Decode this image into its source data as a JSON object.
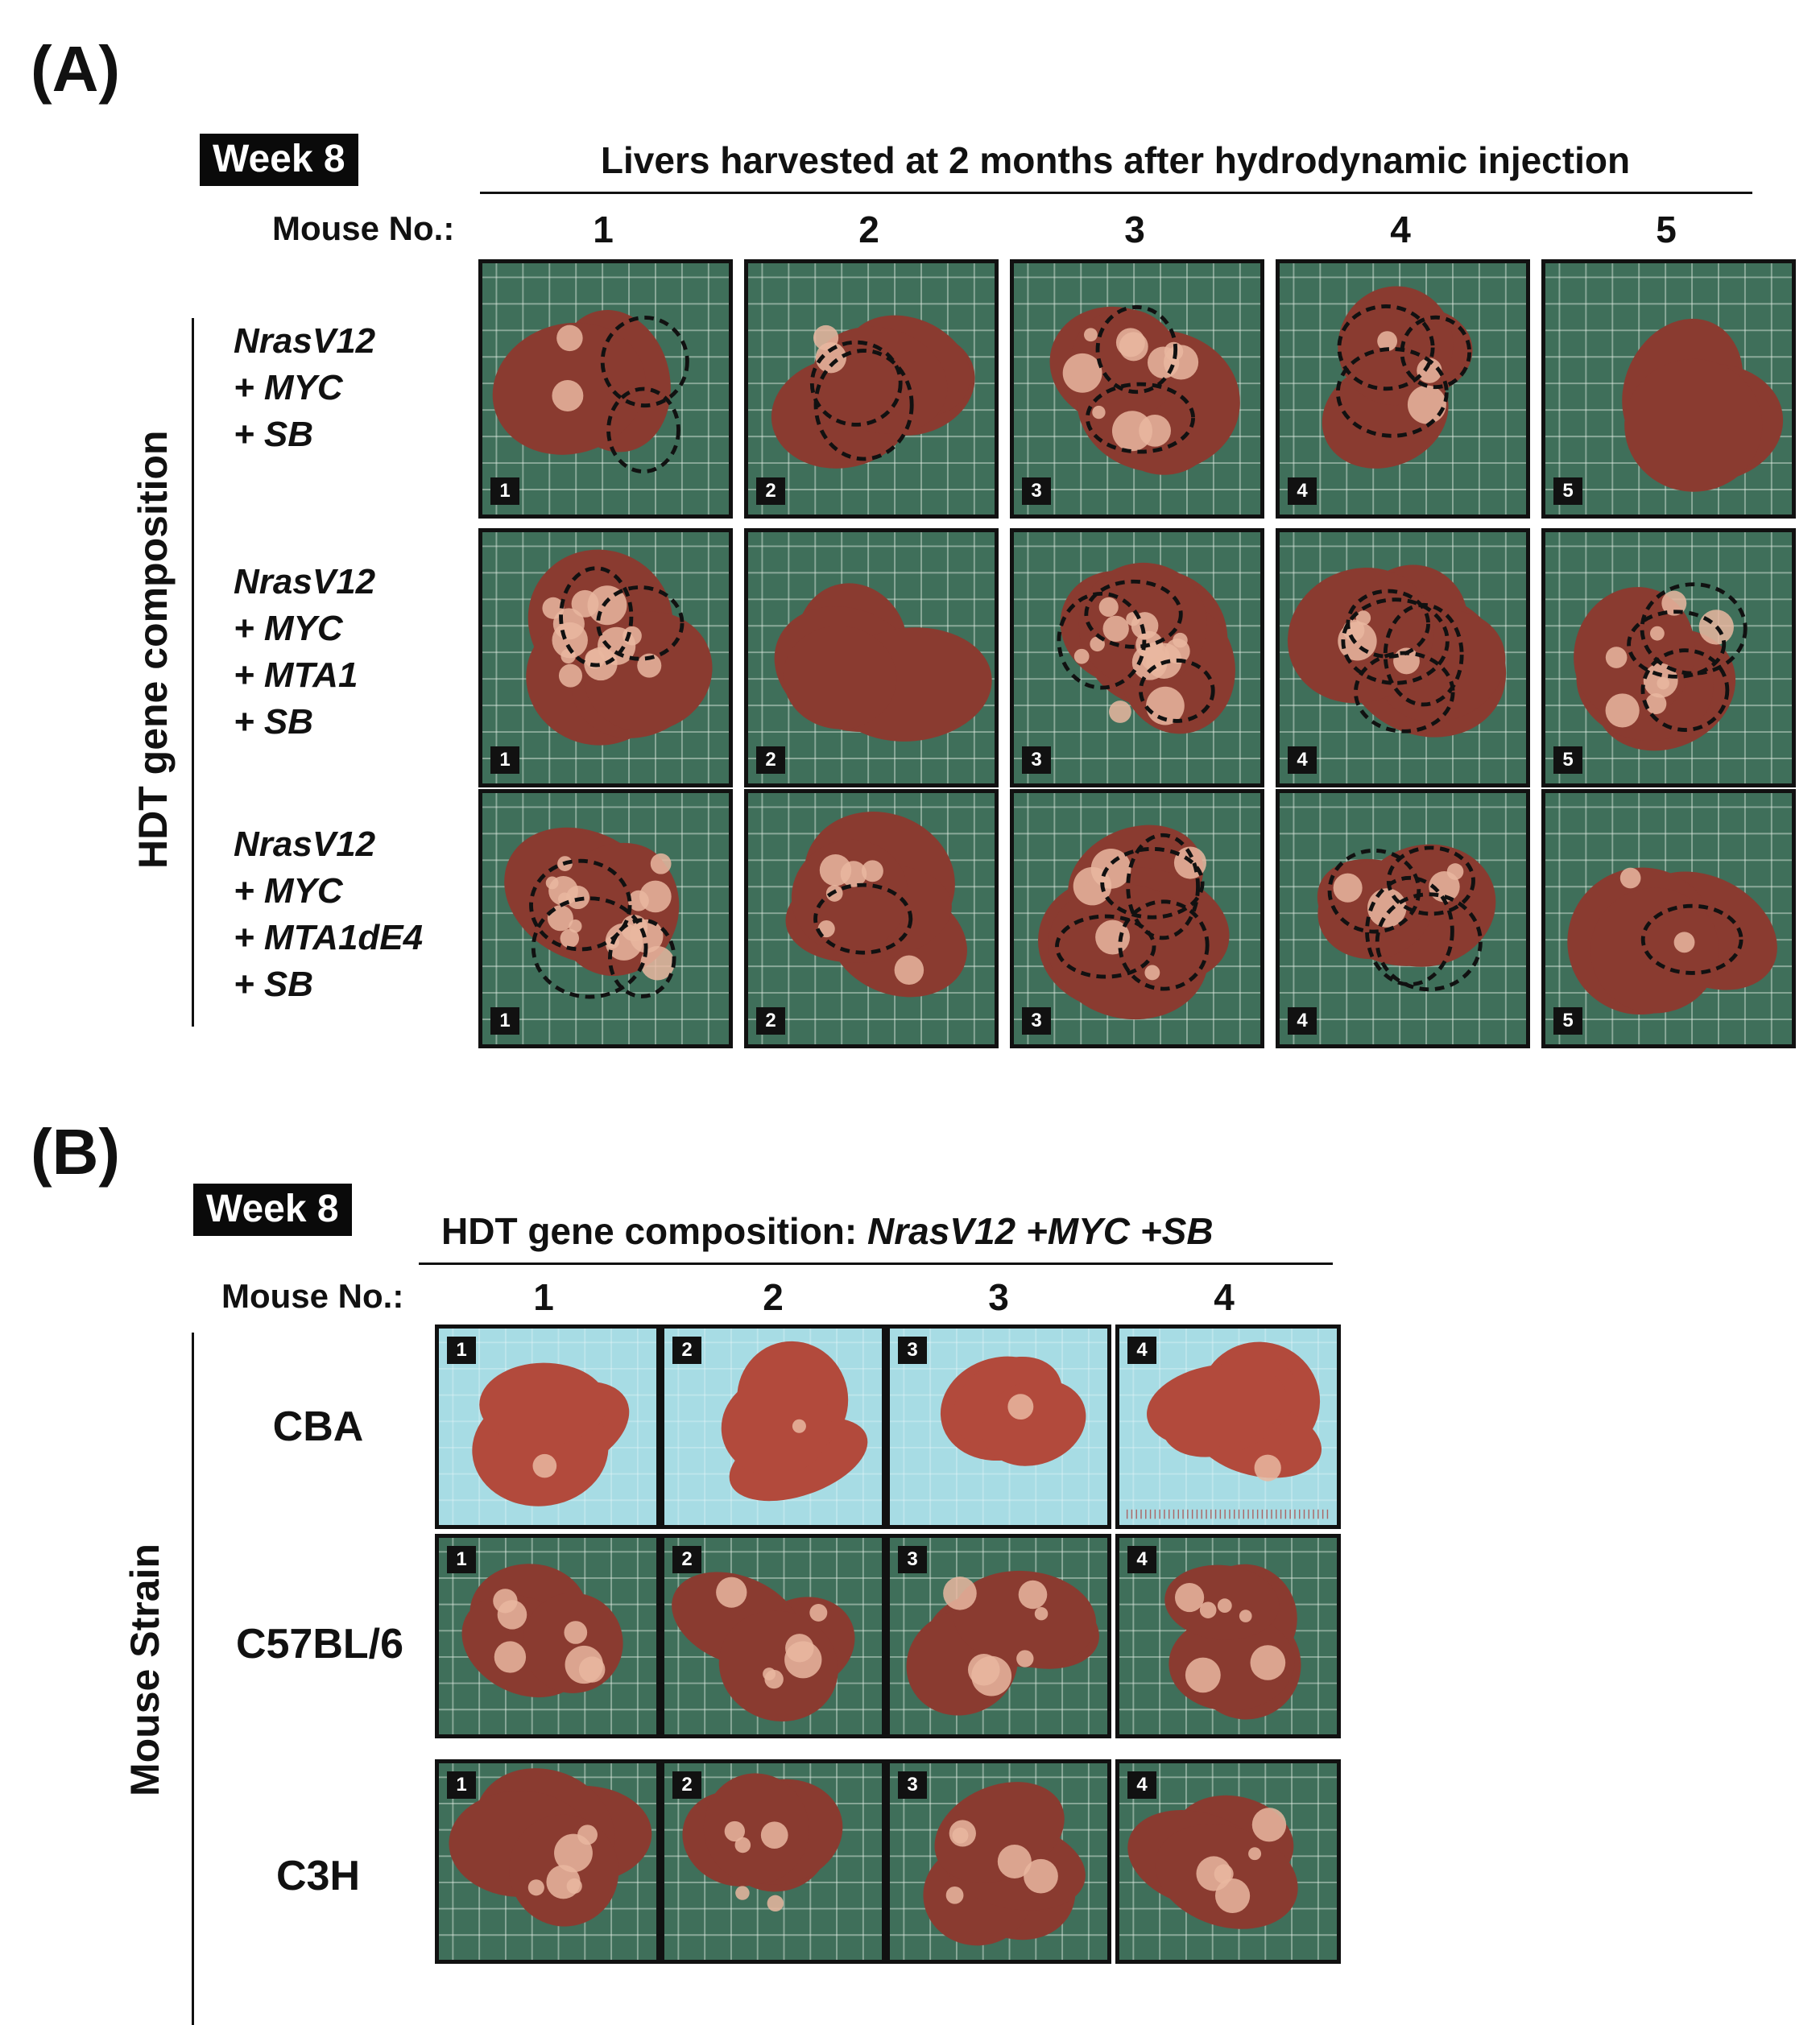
{
  "panelA": {
    "label": "(A)",
    "week": "Week 8",
    "heading": "Livers harvested at 2 months after hydrodynamic injection",
    "mouse_label": "Mouse No.:",
    "columns": [
      "1",
      "2",
      "3",
      "4",
      "5"
    ],
    "row_axis_label": "HDT gene composition",
    "rows": [
      {
        "genes": [
          "NrasV12",
          "+ MYC",
          "+ SB"
        ]
      },
      {
        "genes": [
          "NrasV12",
          "+ MYC",
          "+ MTA1",
          "+ SB"
        ]
      },
      {
        "genes": [
          "NrasV12",
          "+ MYC",
          "+ MTA1dE4",
          "+ SB"
        ]
      }
    ]
  },
  "panelB": {
    "label": "(B)",
    "week": "Week 8",
    "heading_prefix": "HDT gene composition: ",
    "heading_genes": "NrasV12 +MYC +SB",
    "mouse_label": "Mouse No.:",
    "columns": [
      "1",
      "2",
      "3",
      "4"
    ],
    "row_axis_label": "Mouse Strain",
    "rows": [
      {
        "strain": "CBA"
      },
      {
        "strain": "C57BL/6"
      },
      {
        "strain": "C3H"
      }
    ]
  },
  "colors": {
    "green_mat": "#3f6f5a",
    "blue_mat": "#a7dce4",
    "liver": "#8a3b30",
    "tumor": "#e9b7a0"
  }
}
